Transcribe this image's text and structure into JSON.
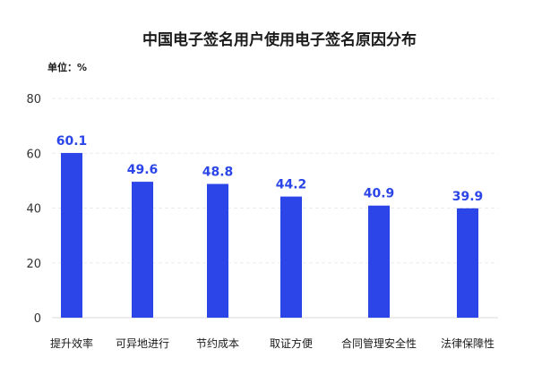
{
  "chart_data": {
    "type": "bar",
    "title": "中国电子签名用户使用电子签名原因分布",
    "unit_label": "单位：%",
    "categories": [
      "提升效率",
      "可异地进行",
      "节约成本",
      "取证方便",
      "合同管理安全性",
      "法律保障性"
    ],
    "values": [
      60.1,
      49.6,
      48.8,
      44.2,
      40.9,
      39.9
    ],
    "value_labels": [
      "60.1",
      "49.6",
      "48.8",
      "44.2",
      "40.9",
      "39.9"
    ],
    "y_ticks": [
      "0",
      "20",
      "40",
      "60",
      "80"
    ],
    "ylim": [
      0,
      80
    ],
    "xlabel": "",
    "ylabel": "",
    "grid": true,
    "legend": "none",
    "bar_color": "#2b45e8",
    "label_color": "#2b45e8",
    "grid_color": "#ebebeb"
  }
}
